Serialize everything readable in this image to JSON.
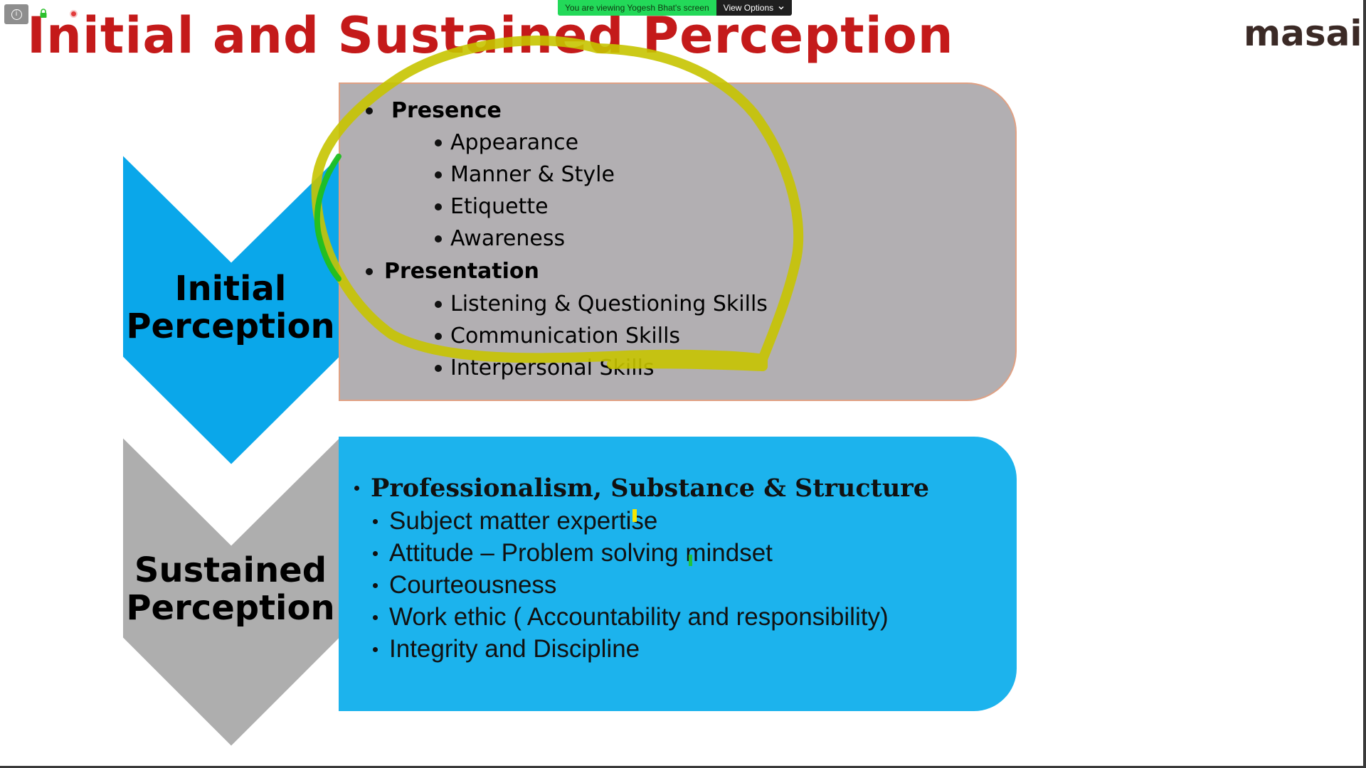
{
  "zoom": {
    "banner_text": "You are viewing Yogesh Bhat's screen",
    "view_options_label": "View Options",
    "info_icon": "info-icon",
    "lock_icon": "lock-icon",
    "record_icon": "recording-icon"
  },
  "slide": {
    "title": "Initial and Sustained Perception",
    "brand": "masai",
    "colors": {
      "title": "#c41a1a",
      "chevron_initial": "#0aa7ea",
      "chevron_sustained": "#aeaeae",
      "panel_top": "#b2afb2",
      "panel_bottom": "#1cb3ed",
      "annotation": "#c7c400"
    },
    "initial": {
      "label_line1": "Initial",
      "label_line2": "Perception",
      "groups": [
        {
          "heading": "Presence",
          "items": [
            "Appearance",
            "Manner & Style",
            "Etiquette",
            "Awareness"
          ]
        },
        {
          "heading": "Presentation",
          "items": [
            "Listening & Questioning Skills",
            "Communication Skills",
            "Interpersonal Skills"
          ]
        }
      ]
    },
    "sustained": {
      "label_line1": "Sustained",
      "label_line2": "Perception",
      "heading": "Professionalism, Substance & Structure",
      "items": [
        "Subject matter expertise",
        "Attitude – Problem solving mindset",
        "Courteousness",
        "Work ethic ( Accountability and responsibility)",
        "Integrity and Discipline"
      ]
    }
  }
}
